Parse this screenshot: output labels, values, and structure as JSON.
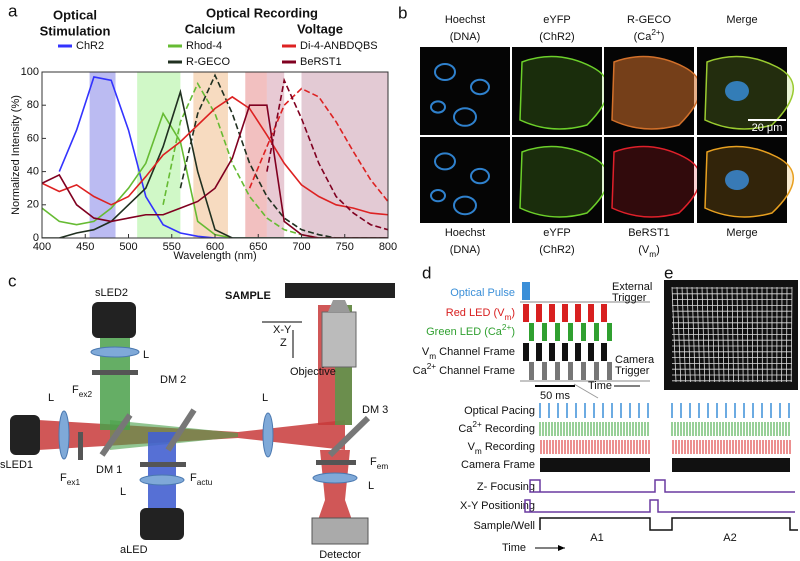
{
  "panel_labels": [
    "a",
    "b",
    "c",
    "d",
    "e"
  ],
  "chart_data": {
    "type": "line",
    "titles": {
      "stimulation": [
        "Optical",
        "Stimulation"
      ],
      "recording": "Optical Recording",
      "calcium": "Calcium",
      "voltage": "Voltage"
    },
    "x_label": "Wavelength (nm)",
    "y_label": "Normalized Intensity (%)",
    "x": [
      400,
      420,
      440,
      460,
      480,
      500,
      520,
      540,
      560,
      580,
      600,
      620,
      640,
      660,
      680,
      700,
      720,
      740,
      760,
      780,
      800
    ],
    "series": [
      {
        "name": "ChR2",
        "color": "#3333ff",
        "values": [
          null,
          40,
          65,
          97,
          95,
          65,
          25,
          8,
          3,
          1,
          0,
          0,
          0,
          0,
          0,
          0,
          0,
          0,
          0,
          0,
          0
        ],
        "emission": [
          null,
          null,
          null,
          null,
          null,
          null,
          null,
          null,
          null,
          null,
          null,
          null,
          null,
          null,
          null,
          null,
          null,
          null,
          null,
          null,
          null
        ]
      },
      {
        "name": "Rhod-4",
        "color": "#66bb33",
        "values": [
          18,
          10,
          8,
          10,
          18,
          30,
          45,
          75,
          58,
          10,
          2,
          0,
          0,
          0,
          0,
          0,
          0,
          0,
          0,
          0,
          0
        ],
        "emission": [
          null,
          null,
          null,
          null,
          null,
          null,
          null,
          20,
          70,
          93,
          75,
          45,
          25,
          12,
          5,
          2,
          0,
          0,
          0,
          0,
          0
        ]
      },
      {
        "name": "R-GECO",
        "color": "#203020",
        "values": [
          0,
          0,
          3,
          5,
          10,
          20,
          30,
          55,
          88,
          40,
          5,
          0,
          0,
          0,
          0,
          0,
          0,
          0,
          0,
          0,
          0
        ],
        "emission": [
          null,
          null,
          null,
          null,
          null,
          null,
          null,
          null,
          30,
          75,
          98,
          75,
          45,
          25,
          12,
          5,
          2,
          0,
          0,
          0,
          0
        ]
      },
      {
        "name": "Di-4-ANBDQBS",
        "color": "#dd2222",
        "values": [
          33,
          28,
          32,
          25,
          20,
          25,
          37,
          50,
          58,
          68,
          78,
          85,
          78,
          62,
          45,
          32,
          25,
          20,
          18,
          15,
          14
        ],
        "emission": [
          null,
          null,
          null,
          null,
          null,
          null,
          null,
          null,
          null,
          null,
          null,
          null,
          30,
          55,
          80,
          90,
          85,
          70,
          52,
          35,
          22
        ]
      },
      {
        "name": "BeRST1",
        "color": "#800020",
        "values": [
          33,
          38,
          20,
          12,
          10,
          12,
          14,
          14,
          18,
          22,
          30,
          48,
          80,
          80,
          10,
          2,
          0,
          0,
          0,
          0,
          0
        ],
        "emission": [
          null,
          null,
          null,
          null,
          null,
          null,
          null,
          null,
          null,
          null,
          null,
          null,
          null,
          40,
          95,
          72,
          45,
          25,
          15,
          8,
          5
        ]
      }
    ],
    "bands": [
      {
        "range": [
          455,
          485
        ],
        "color": "rgba(120,120,230,0.5)"
      },
      {
        "range": [
          510,
          560
        ],
        "color": "rgba(150,240,130,0.45)"
      },
      {
        "range": [
          575,
          615
        ],
        "color": "rgba(240,190,140,0.55)"
      },
      {
        "range": [
          635,
          660
        ],
        "color": "rgba(230,130,130,0.5)"
      },
      {
        "range": [
          660,
          680
        ],
        "color": "rgba(210,150,170,0.5)"
      },
      {
        "range": [
          700,
          800
        ],
        "color": "rgba(200,150,170,0.5)"
      }
    ],
    "xlim": [
      400,
      800
    ],
    "xticks": [
      400,
      450,
      500,
      550,
      600,
      650,
      700,
      750,
      800
    ],
    "ylim": [
      0,
      100
    ],
    "yticks": [
      0,
      20,
      40,
      60,
      80,
      100
    ]
  },
  "microscopy": {
    "top_labels": [
      [
        "Hoechst",
        "(DNA)"
      ],
      [
        "eYFP",
        "(ChR2)"
      ],
      [
        "R-GECO",
        {
          "text": "(Ca",
          "sup": "2+",
          "tail": ")"
        }
      ],
      [
        "Merge"
      ]
    ],
    "bottom_labels": [
      [
        "Hoechst",
        "(DNA)"
      ],
      [
        "eYFP",
        "(ChR2)"
      ],
      [
        "BeRST1",
        {
          "text": "(V",
          "sub": "m",
          "tail": ")"
        }
      ],
      [
        "Merge"
      ]
    ],
    "scale_bar": "20 μm"
  },
  "optics": {
    "sample": "SAMPLE",
    "xy": "X-Y",
    "z": "Z",
    "objective": "Objective",
    "sled2": "sLED2",
    "sled1": "sLED1",
    "aled": "aLED",
    "detector": "Detector",
    "lens": "L",
    "dm1": "DM 1",
    "dm2": "DM 2",
    "dm3": "DM 3",
    "f_ex1": {
      "text": "F",
      "sub": "ex1"
    },
    "f_ex2": {
      "text": "F",
      "sub": "ex2"
    },
    "f_actu": {
      "text": "F",
      "sub": "actu"
    },
    "f_em": {
      "text": "F",
      "sub": "em"
    }
  },
  "timing": {
    "upper_labels": [
      "Optical Pulse",
      {
        "text": "Red LED (V",
        "sub": "m",
        "tail": ")"
      },
      {
        "text": "Green LED (Ca",
        "sup": "2+",
        "tail": ")"
      },
      {
        "text": "V",
        "sub": "m",
        "tail": " Channel Frame"
      },
      {
        "text": "Ca",
        "sup": "2+",
        "tail": " Channel Frame"
      }
    ],
    "external_trigger": [
      "External",
      "Trigger"
    ],
    "camera_trigger": [
      "Camera",
      "Trigger"
    ],
    "scale": "50 ms",
    "time": "Time",
    "lower_labels": [
      "Optical Pacing",
      {
        "text": "Ca",
        "sup": "2+",
        "tail": " Recording"
      },
      {
        "text": "V",
        "sub": "m",
        "tail": " Recording"
      },
      "Camera Frame",
      "Z- Focusing",
      "X-Y Positioning",
      "Sample/Well"
    ],
    "wells": [
      "A1",
      "A2"
    ]
  }
}
